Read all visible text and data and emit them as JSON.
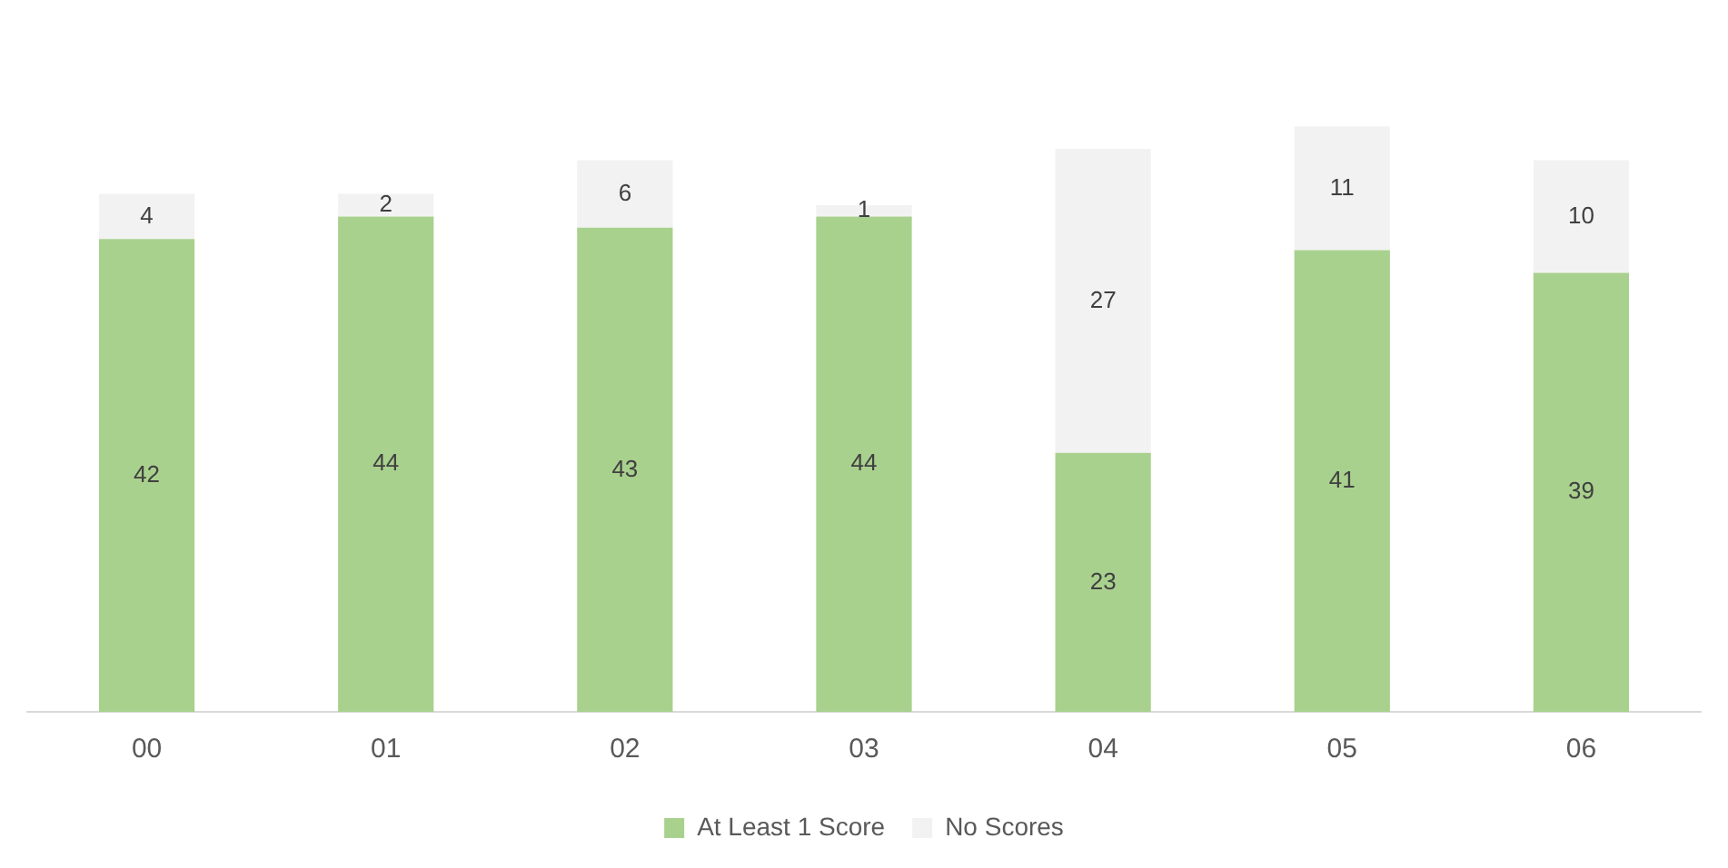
{
  "chart_data": {
    "type": "bar",
    "stacked": true,
    "categories": [
      "00",
      "01",
      "02",
      "03",
      "04",
      "05",
      "06"
    ],
    "series": [
      {
        "name": "At Least 1 Score",
        "color": "#a9d18e",
        "values": [
          42,
          44,
          43,
          44,
          23,
          41,
          39
        ]
      },
      {
        "name": "No Scores",
        "color": "#f2f2f2",
        "values": [
          4,
          2,
          6,
          1,
          27,
          11,
          10
        ]
      }
    ],
    "data_labels": true,
    "legend": "bottom",
    "grid": false,
    "tick_labels": "x"
  }
}
